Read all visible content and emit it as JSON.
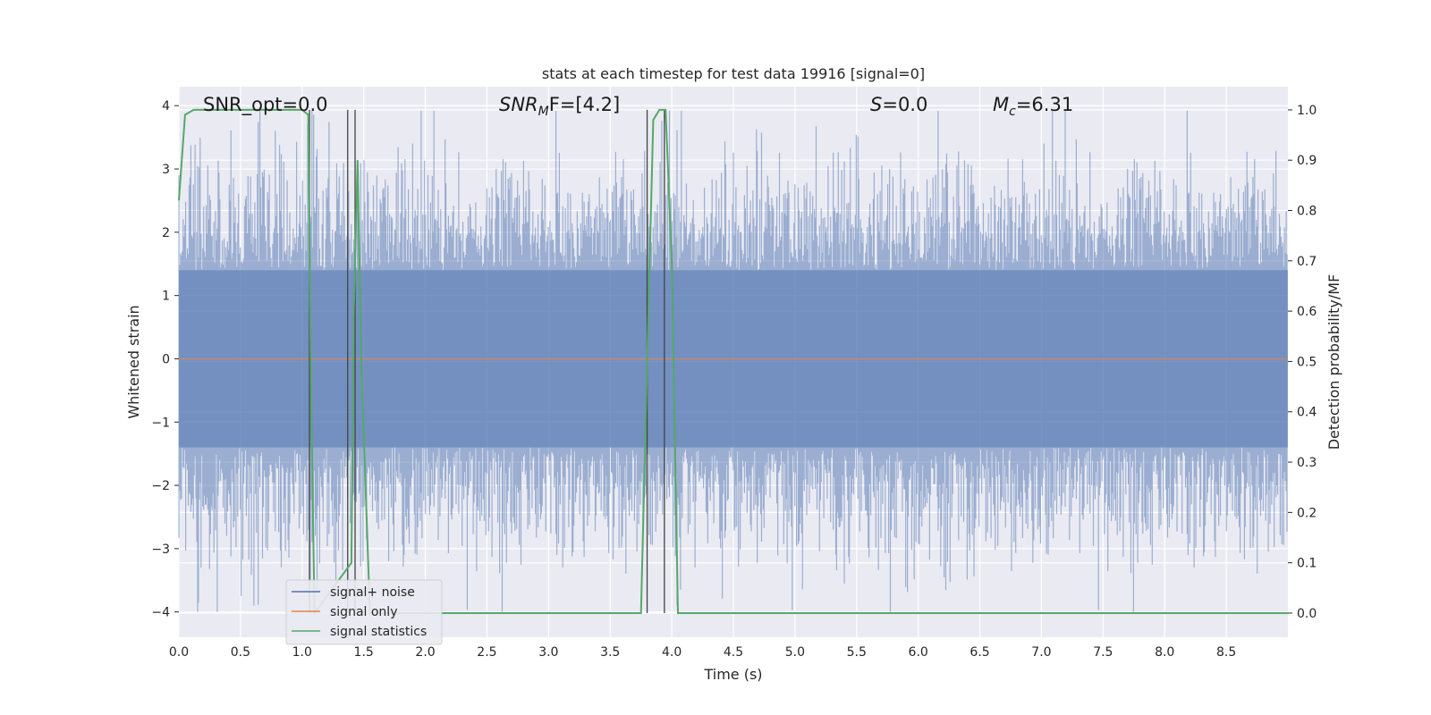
{
  "chart_data": {
    "type": "line",
    "title": "stats at each timestep for test data 19916 [signal=0]",
    "xlabel": "Time (s)",
    "ylabel": "Whitened strain",
    "ylabel_right": "Detection probability/MF",
    "xlim": [
      0.0,
      9.0
    ],
    "ylim": [
      -4.4,
      4.3
    ],
    "ylim_right": [
      -0.048,
      1.046
    ],
    "x_ticks": [
      "0.0",
      "0.5",
      "1.0",
      "1.5",
      "2.0",
      "2.5",
      "3.0",
      "3.5",
      "4.0",
      "4.5",
      "5.0",
      "5.5",
      "6.0",
      "6.5",
      "7.0",
      "7.5",
      "8.0",
      "8.5"
    ],
    "y_ticks": [
      "4",
      "3",
      "2",
      "1",
      "0",
      "−1",
      "−2",
      "−3",
      "−4"
    ],
    "y_ticks_right": [
      "1.0",
      "0.9",
      "0.8",
      "0.7",
      "0.6",
      "0.5",
      "0.4",
      "0.3",
      "0.2",
      "0.1",
      "0.0"
    ],
    "grid": true,
    "legend_position": "lower-left",
    "annotations": {
      "snr_opt": "SNR_opt=0.0",
      "snr_mf_main": "SNR",
      "snr_mf_sub": "M",
      "snr_mf_rest": "F=[4.2]",
      "s_main": "S",
      "s_rest": "=0.0",
      "mc_main": "M",
      "mc_sub": "c",
      "mc_rest": "=6.31"
    },
    "series": [
      {
        "name": "signal+ noise",
        "color": "#4c72b0",
        "description_values": "whitened noise sampled uniformly over 0–9 s, roughly ±2σ with peaks near ±3.9"
      },
      {
        "name": "signal only",
        "color": "#dd8452",
        "x": [
          0.0,
          9.0
        ],
        "y": [
          0.0,
          0.0
        ]
      },
      {
        "name": "signal statistics",
        "color": "#55a868",
        "x": [
          0.0,
          0.05,
          0.12,
          0.5,
          1.0,
          1.05,
          1.07,
          1.1,
          1.4,
          1.42,
          1.45,
          1.48,
          1.55,
          3.75,
          3.8,
          3.85,
          3.9,
          3.95,
          4.0,
          4.05,
          9.0
        ],
        "y": [
          0.82,
          0.99,
          1.0,
          1.0,
          1.0,
          0.99,
          0.5,
          0.0,
          0.1,
          0.6,
          0.9,
          0.5,
          0.0,
          0.0,
          0.5,
          0.98,
          1.0,
          1.0,
          0.7,
          0.0,
          0.0
        ]
      }
    ],
    "vertical_markers_x": [
      1.06,
      1.37,
      1.43,
      3.8,
      3.94
    ]
  }
}
